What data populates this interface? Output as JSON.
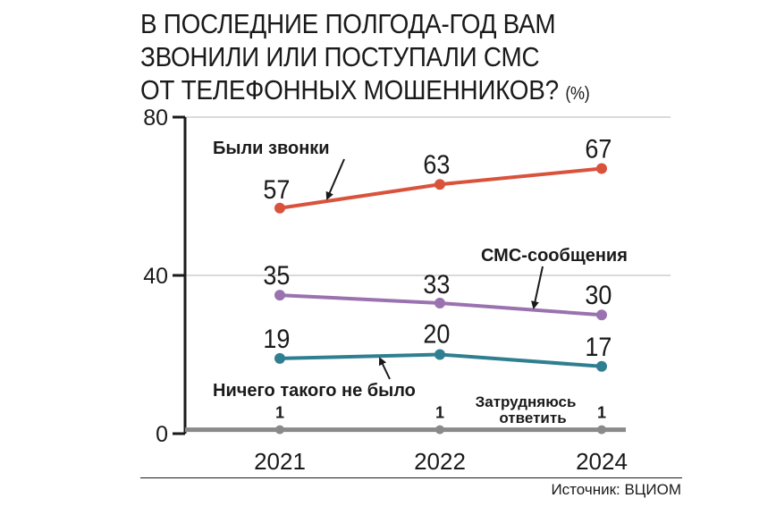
{
  "chart_data": {
    "type": "line",
    "title": "В ПОСЛЕДНИЕ ПОЛГОДА-ГОД ВАМ ЗВОНИЛИ ИЛИ ПОСТУПАЛИ СМС ОТ ТЕЛЕФОННЫХ МОШЕННИКОВ?",
    "title_lines": [
      "В ПОСЛЕДНИЕ ПОЛГОДА-ГОД ВАМ",
      "ЗВОНИЛИ ИЛИ ПОСТУПАЛИ СМС",
      "ОТ ТЕЛЕФОННЫХ МОШЕННИКОВ?"
    ],
    "unit": "(%)",
    "categories": [
      "2021",
      "2022",
      "2024"
    ],
    "ylim": [
      0,
      80
    ],
    "yticks": [
      0,
      40,
      80
    ],
    "grid": true,
    "series": [
      {
        "name": "Были звонки",
        "values": [
          57,
          63,
          67
        ],
        "color": "#d9533c"
      },
      {
        "name": "СМС-сообщения",
        "values": [
          35,
          33,
          30
        ],
        "color": "#9b72b0"
      },
      {
        "name": "Ничего такого не было",
        "values": [
          19,
          20,
          17
        ],
        "color": "#2f7f91"
      },
      {
        "name": "Затрудняюсь ответить",
        "name_lines": [
          "Затрудняюсь",
          "ответить"
        ],
        "values": [
          1,
          1,
          1
        ],
        "color": "#8a8a8a"
      }
    ]
  },
  "source": "Источник: ВЦИОМ"
}
